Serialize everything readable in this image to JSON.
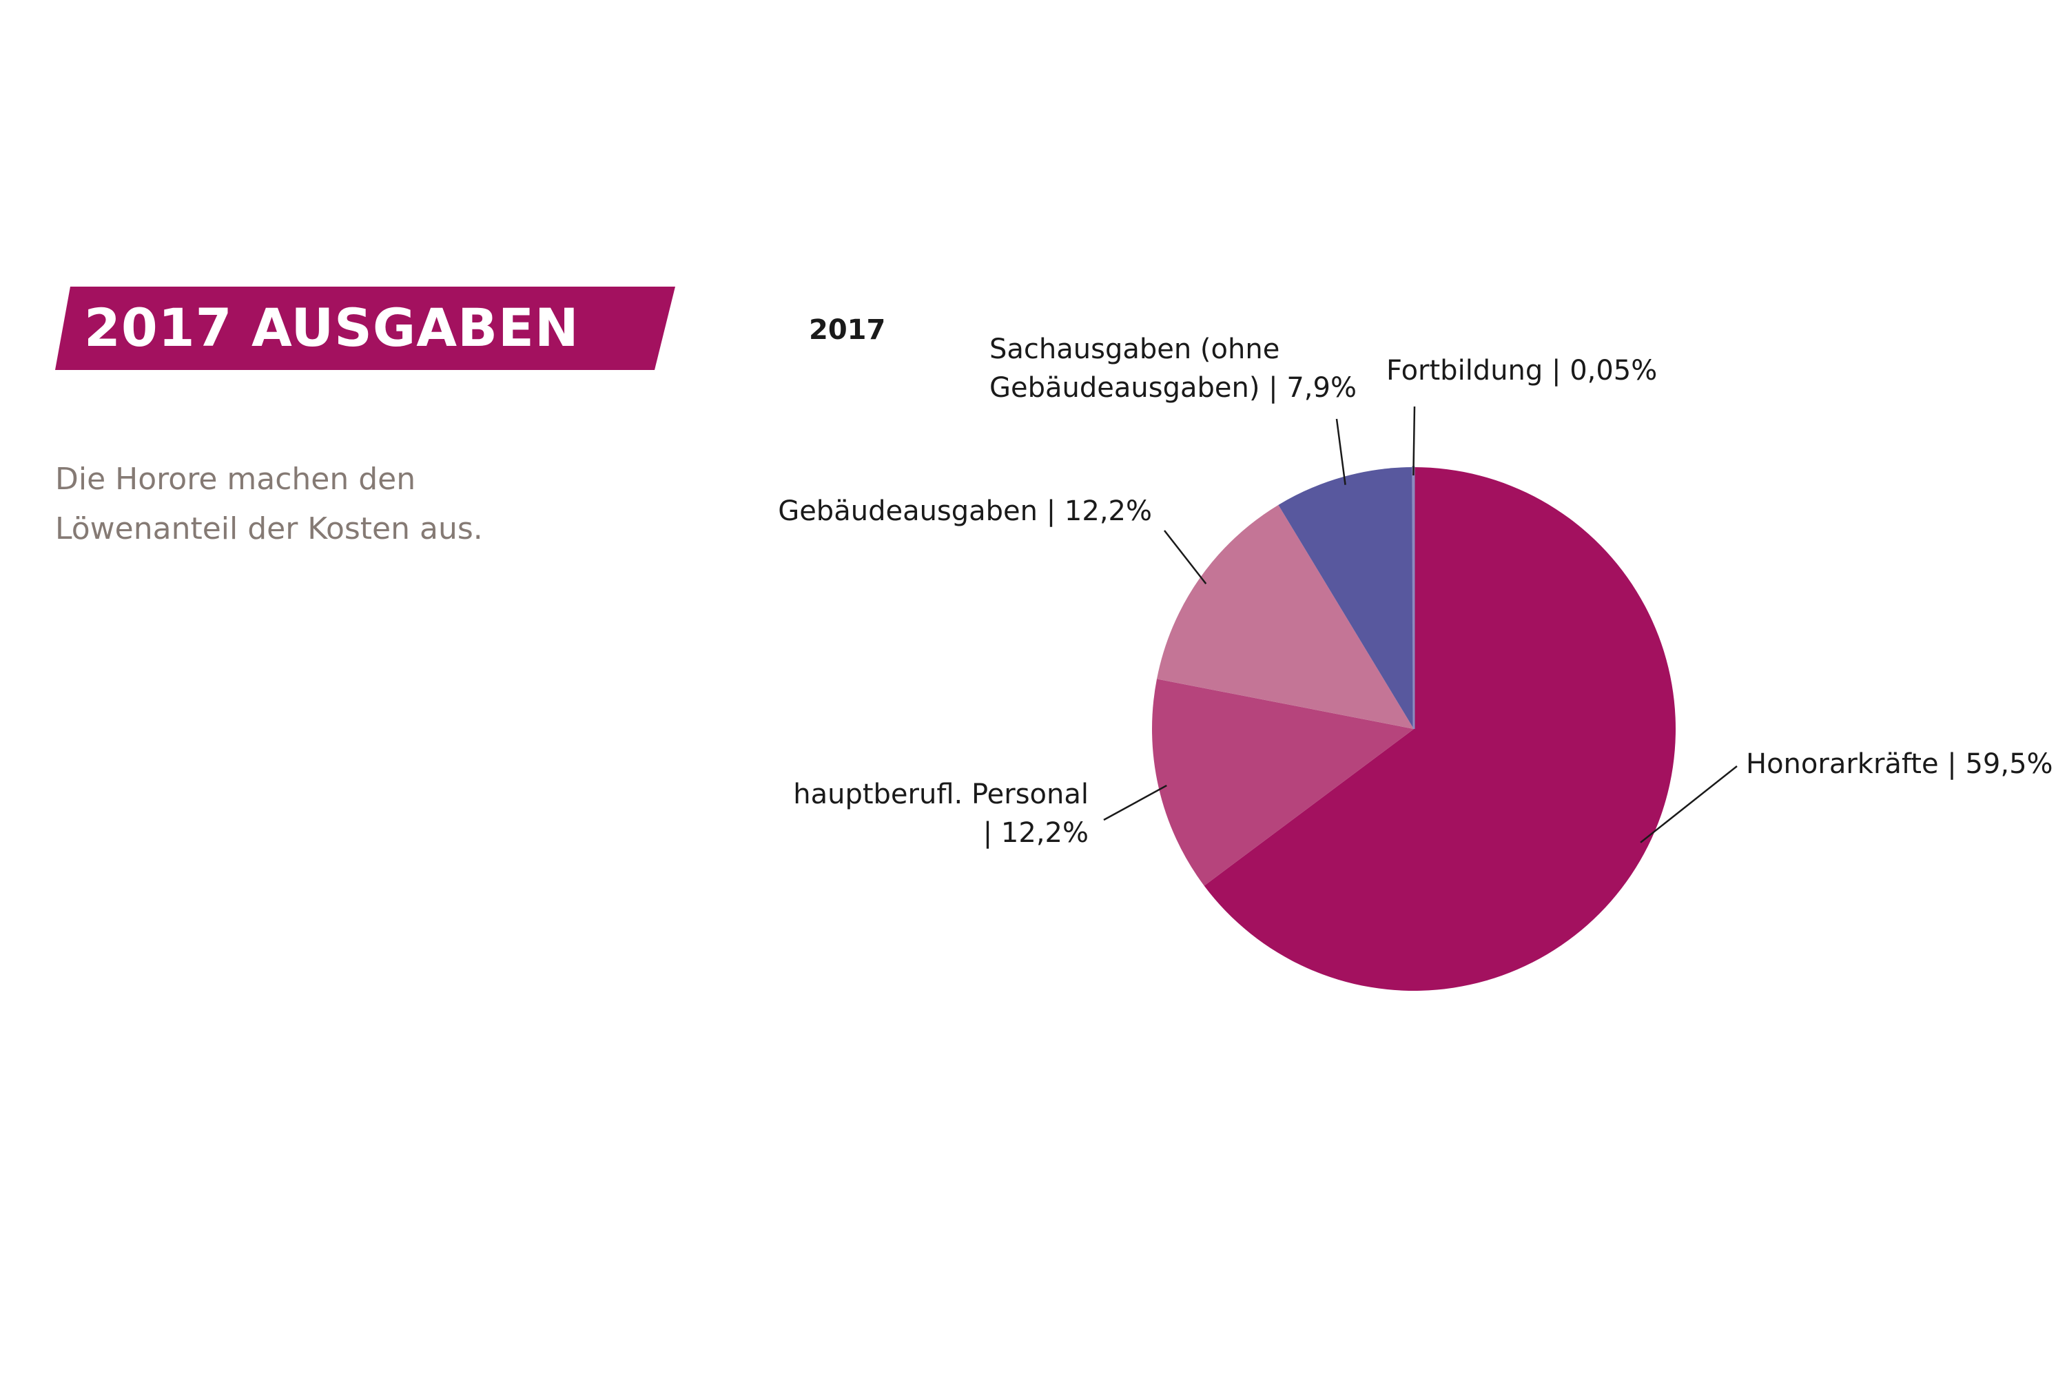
{
  "header": {
    "title": "2017 AUSGABEN",
    "accent_color": "#a3115f"
  },
  "subtitle": {
    "lines": [
      "Die Horore machen den",
      "Löwenanteil der Kosten aus."
    ]
  },
  "chart_data": {
    "type": "pie",
    "title": "2017",
    "slices": [
      {
        "name": "Honorarkräfte",
        "value": 59.5,
        "label_lines": [
          "Honorarkräfte | 59,5%"
        ],
        "color": "#a3115f"
      },
      {
        "name": "hauptberufl. Personal",
        "value": 12.2,
        "label_lines": [
          "hauptberufl. Personal",
          "| 12,2%"
        ],
        "color": "#b6447c"
      },
      {
        "name": "Gebäudeausgaben",
        "value": 12.2,
        "label_lines": [
          "Gebäudeausgaben | 12,2%"
        ],
        "color": "#c47596"
      },
      {
        "name": "Sachausgaben (ohne Gebäudeausgaben)",
        "value": 7.9,
        "label_lines": [
          "Sachausgaben (ohne",
          "Gebäudeausgaben) | 7,9%"
        ],
        "color": "#58589e"
      },
      {
        "name": "Fortbildung",
        "value": 0.05,
        "label_lines": [
          "Fortbildung | 0,05%"
        ],
        "color": "#8b8bbf"
      }
    ]
  }
}
